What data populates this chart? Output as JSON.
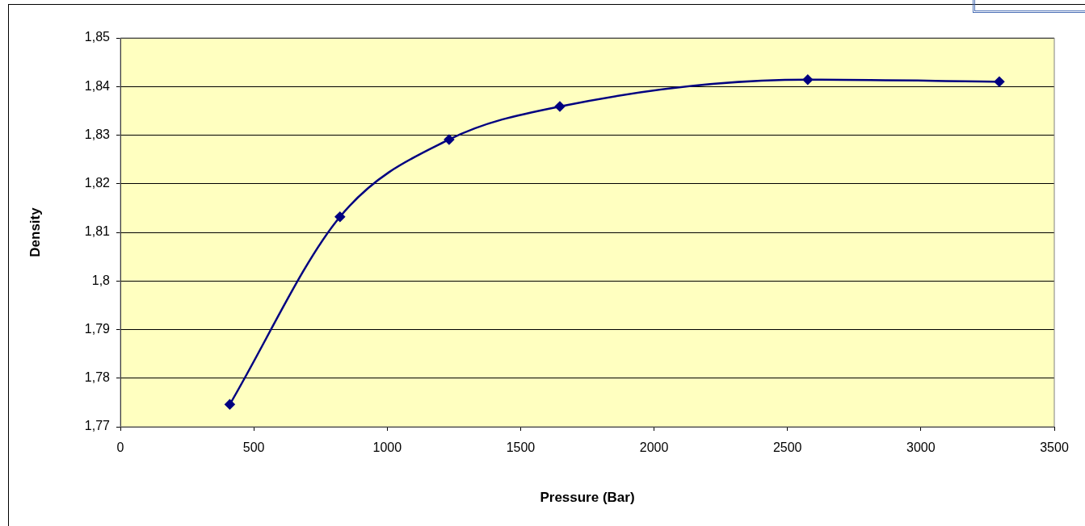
{
  "chart_data": {
    "type": "line",
    "xlabel": "Pressure (Bar)",
    "ylabel": "Density",
    "x": [
      410,
      823,
      1232,
      1647,
      2576,
      3294
    ],
    "series": [
      {
        "color": "#000080",
        "values": [
          1.7746,
          1.8132,
          1.8291,
          1.8359,
          1.8414,
          1.841
        ]
      }
    ],
    "xlim": [
      0,
      3500
    ],
    "xticks": [
      0,
      500,
      1000,
      1500,
      2000,
      2500,
      3000,
      3500
    ],
    "ylim": [
      1.77,
      1.85
    ],
    "yticks": [
      {
        "value": 1.77,
        "label": "1,77"
      },
      {
        "value": 1.78,
        "label": "1,78"
      },
      {
        "value": 1.79,
        "label": "1,79"
      },
      {
        "value": 1.8,
        "label": "1,8"
      },
      {
        "value": 1.81,
        "label": "1,81"
      },
      {
        "value": 1.82,
        "label": "1,82"
      },
      {
        "value": 1.83,
        "label": "1,83"
      },
      {
        "value": 1.84,
        "label": "1,84"
      },
      {
        "value": 1.85,
        "label": "1,85"
      }
    ],
    "grid": "y",
    "legend": false,
    "marker": "diamond",
    "line_style": "solid"
  }
}
